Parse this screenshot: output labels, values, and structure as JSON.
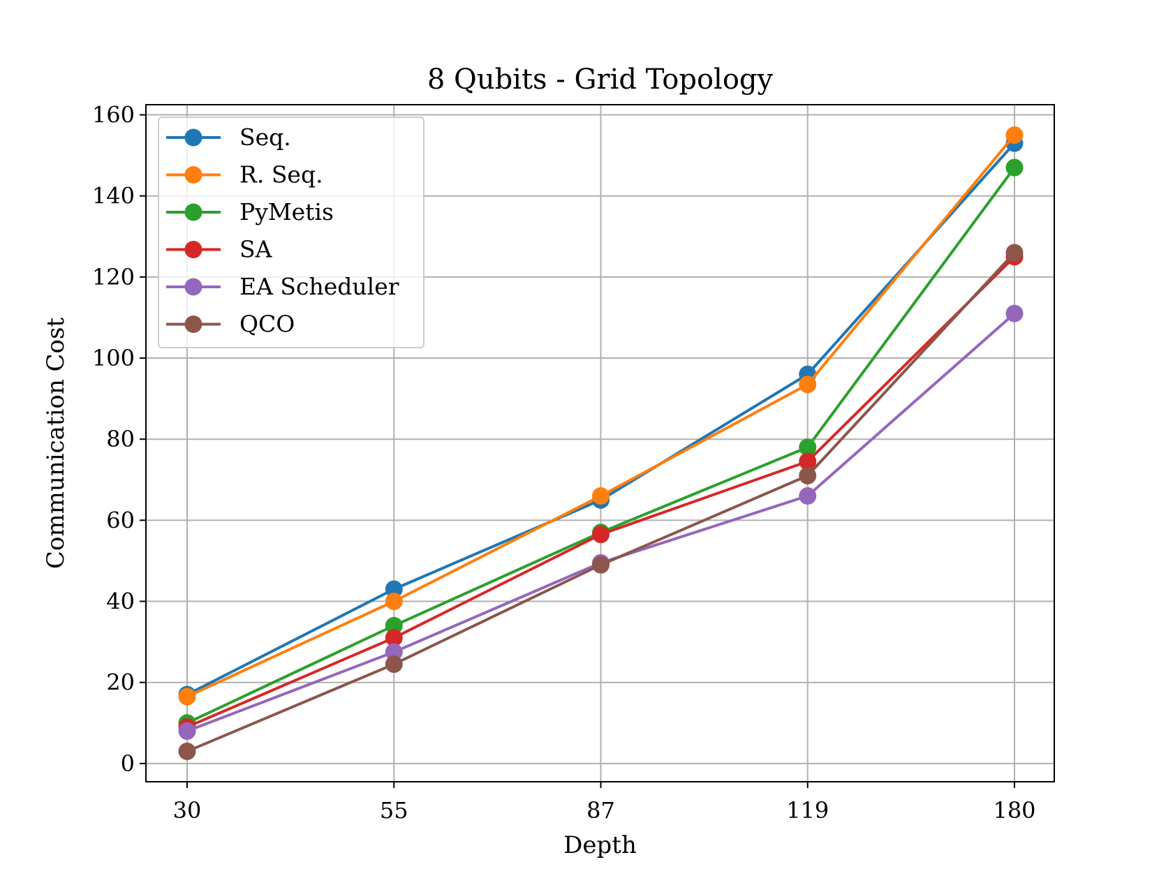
{
  "chart_data": {
    "type": "line",
    "title": "8 Qubits - Grid Topology",
    "xlabel": "Depth",
    "ylabel": "Communication Cost",
    "categories": [
      "30",
      "55",
      "87",
      "119",
      "180"
    ],
    "ylim": [
      -4.5,
      162.5
    ],
    "yticks": [
      0,
      20,
      40,
      60,
      80,
      100,
      120,
      140,
      160
    ],
    "grid": true,
    "legend_position": "upper-left",
    "series": [
      {
        "name": "Seq.",
        "color": "#1f77b4",
        "values": [
          17,
          43,
          65,
          96,
          153
        ]
      },
      {
        "name": "R. Seq.",
        "color": "#ff7f0e",
        "values": [
          16.5,
          40,
          66,
          93.5,
          155
        ]
      },
      {
        "name": "PyMetis",
        "color": "#2ca02c",
        "values": [
          10,
          34,
          57,
          78,
          147
        ]
      },
      {
        "name": "SA",
        "color": "#d62728",
        "values": [
          9,
          31,
          56.5,
          74.5,
          125
        ]
      },
      {
        "name": "EA Scheduler",
        "color": "#9467bd",
        "values": [
          8,
          27.5,
          49.5,
          66,
          111
        ]
      },
      {
        "name": "QCO",
        "color": "#8c564b",
        "values": [
          3,
          24.5,
          49,
          71,
          126
        ]
      }
    ]
  }
}
